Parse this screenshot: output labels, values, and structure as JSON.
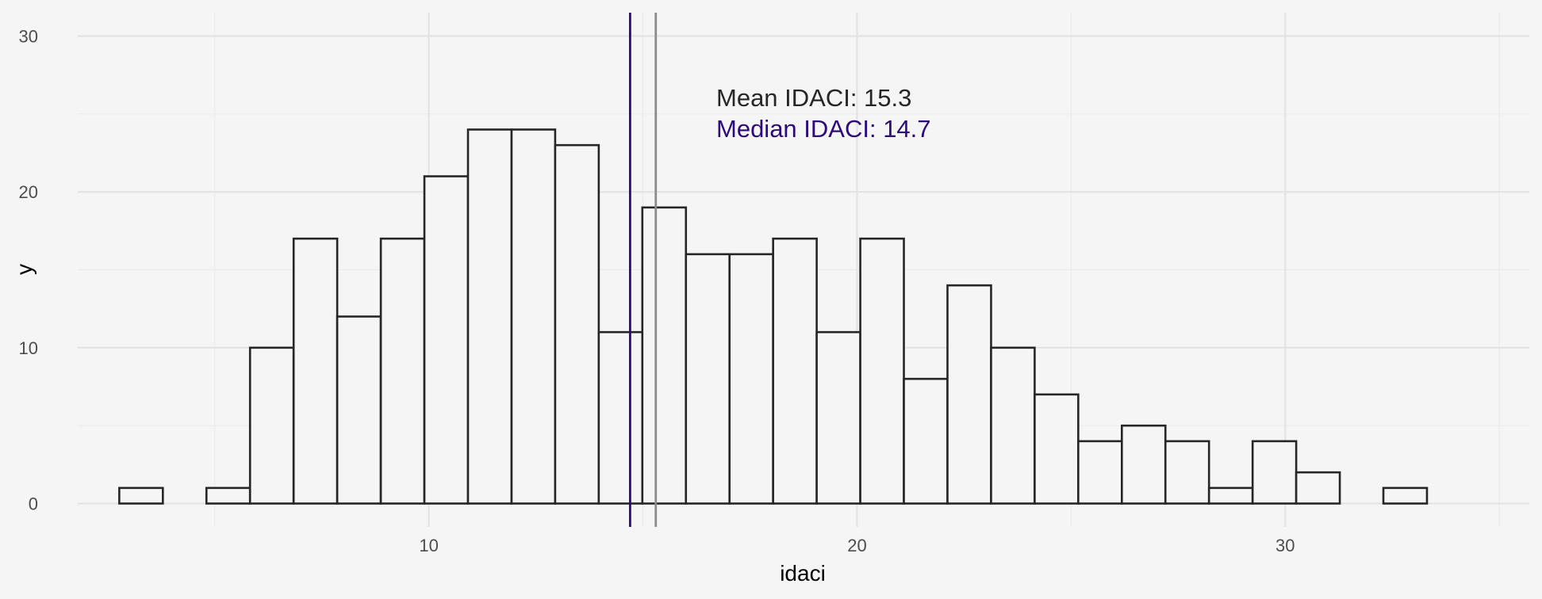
{
  "chart_data": {
    "type": "histogram",
    "xlabel": "idaci",
    "ylabel": "y",
    "xlim": [
      1.8,
      35.7
    ],
    "ylim": [
      -1.5,
      31.5
    ],
    "x_ticks": [
      10,
      20,
      30
    ],
    "x_minor_ticks": [
      5,
      15,
      25,
      35
    ],
    "y_ticks": [
      0,
      10,
      20,
      30
    ],
    "y_minor_ticks": [
      5,
      15,
      25
    ],
    "bin_width": 1.018,
    "bin_start": 2.77,
    "counts": [
      1,
      0,
      1,
      10,
      17,
      12,
      17,
      21,
      24,
      24,
      23,
      11,
      19,
      16,
      16,
      17,
      11,
      17,
      8,
      14,
      10,
      7,
      4,
      5,
      4,
      1,
      4,
      2,
      0,
      1
    ],
    "fill": "#f5f5f5",
    "outline": "#262626",
    "grid": true,
    "mean": 15.3,
    "median": 14.7,
    "mean_color": "#8c8c8c",
    "median_color": "#2d0a7a",
    "annotations": {
      "mean_label": "Mean IDACI: 15.3",
      "median_label": "Median IDACI: 14.7"
    }
  }
}
